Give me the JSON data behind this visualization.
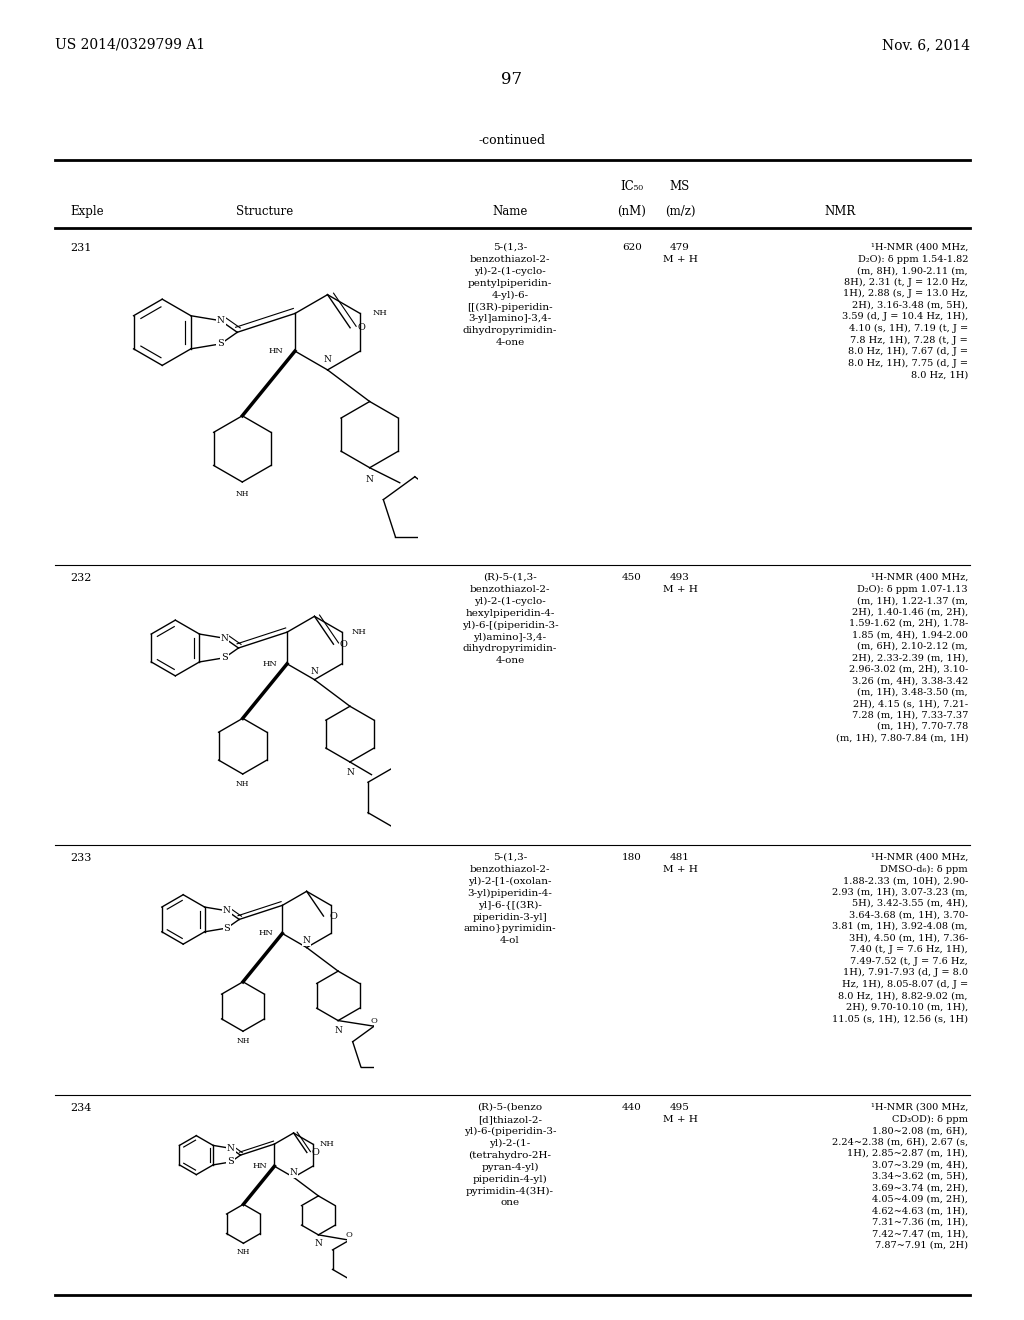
{
  "page_header_left": "US 2014/0329799 A1",
  "page_header_right": "Nov. 6, 2014",
  "page_number": "97",
  "continued_label": "-continued",
  "background_color": "#ffffff",
  "text_color": "#000000",
  "font_size_header": 8.5,
  "font_size_body": 7.5,
  "font_size_page": 10,
  "rows": [
    {
      "exple": "231",
      "name": "5-(1,3-\nbenzothiazol-2-\nyl)-2-(1-cyclo-\npentylpiperidin-\n4-yl)-6-\n[[(3R)-piperidin-\n3-yl]amino]-3,4-\ndihydropyrimidin-\n4-one",
      "ic50": "620",
      "ms": "479\nM + H",
      "nmr": "¹H-NMR (400 MHz,\nD₂O): δ ppm 1.54-1.82\n(m, 8H), 1.90-2.11 (m,\n8H), 2.31 (t, J = 12.0 Hz,\n1H), 2.88 (s, J = 13.0 Hz,\n2H), 3.16-3.48 (m, 5H),\n3.59 (d, J = 10.4 Hz, 1H),\n4.10 (s, 1H), 7.19 (t, J =\n7.8 Hz, 1H), 7.28 (t, J =\n8.0 Hz, 1H), 7.67 (d, J =\n8.0 Hz, 1H), 7.75 (d, J =\n8.0 Hz, 1H)"
    },
    {
      "exple": "232",
      "name": "(R)-5-(1,3-\nbenzothiazol-2-\nyl)-2-(1-cyclo-\nhexylpiperidin-4-\nyl)-6-[(piperidin-3-\nyl)amino]-3,4-\ndihydropyrimidin-\n4-one",
      "ic50": "450",
      "ms": "493\nM + H",
      "nmr": "¹H-NMR (400 MHz,\nD₂O): δ ppm 1.07-1.13\n(m, 1H), 1.22-1.37 (m,\n2H), 1.40-1.46 (m, 2H),\n1.59-1.62 (m, 2H), 1.78-\n1.85 (m, 4H), 1.94-2.00\n(m, 6H), 2.10-2.12 (m,\n2H), 2.33-2.39 (m, 1H),\n2.96-3.02 (m, 2H), 3.10-\n3.26 (m, 4H), 3.38-3.42\n(m, 1H), 3.48-3.50 (m,\n2H), 4.15 (s, 1H), 7.21-\n7.28 (m, 1H), 7.33-7.37\n(m, 1H), 7.70-7.78\n(m, 1H), 7.80-7.84 (m, 1H)"
    },
    {
      "exple": "233",
      "name": "5-(1,3-\nbenzothiazol-2-\nyl)-2-[1-(oxolan-\n3-yl)piperidin-4-\nyl]-6-{[(3R)-\npiperidin-3-yl]\namino}pyrimidin-\n4-ol",
      "ic50": "180",
      "ms": "481\nM + H",
      "nmr": "¹H-NMR (400 MHz,\nDMSO-d₆): δ ppm\n1.88-2.33 (m, 10H), 2.90-\n2.93 (m, 1H), 3.07-3.23 (m,\n5H), 3.42-3.55 (m, 4H),\n3.64-3.68 (m, 1H), 3.70-\n3.81 (m, 1H), 3.92-4.08 (m,\n3H), 4.50 (m, 1H), 7.36-\n7.40 (t, J = 7.6 Hz, 1H),\n7.49-7.52 (t, J = 7.6 Hz,\n1H), 7.91-7.93 (d, J = 8.0\nHz, 1H), 8.05-8.07 (d, J =\n8.0 Hz, 1H), 8.82-9.02 (m,\n2H), 9.70-10.10 (m, 1H),\n11.05 (s, 1H), 12.56 (s, 1H)"
    },
    {
      "exple": "234",
      "name": "(R)-5-(benzo\n[d]thiazol-2-\nyl)-6-(piperidin-3-\nyl)-2-(1-\n(tetrahydro-2H-\npyran-4-yl)\npiperidin-4-yl)\npyrimidin-4(3H)-\none",
      "ic50": "440",
      "ms": "495\nM + H",
      "nmr": "¹H-NMR (300 MHz,\nCD₃OD): δ ppm\n1.80~2.08 (m, 6H),\n2.24~2.38 (m, 6H), 2.67 (s,\n1H), 2.85~2.87 (m, 1H),\n3.07~3.29 (m, 4H),\n3.34~3.62 (m, 5H),\n3.69~3.74 (m, 2H),\n4.05~4.09 (m, 2H),\n4.62~4.63 (m, 1H),\n7.31~7.36 (m, 1H),\n7.42~7.47 (m, 1H),\n7.87~7.91 (m, 2H)"
    }
  ]
}
